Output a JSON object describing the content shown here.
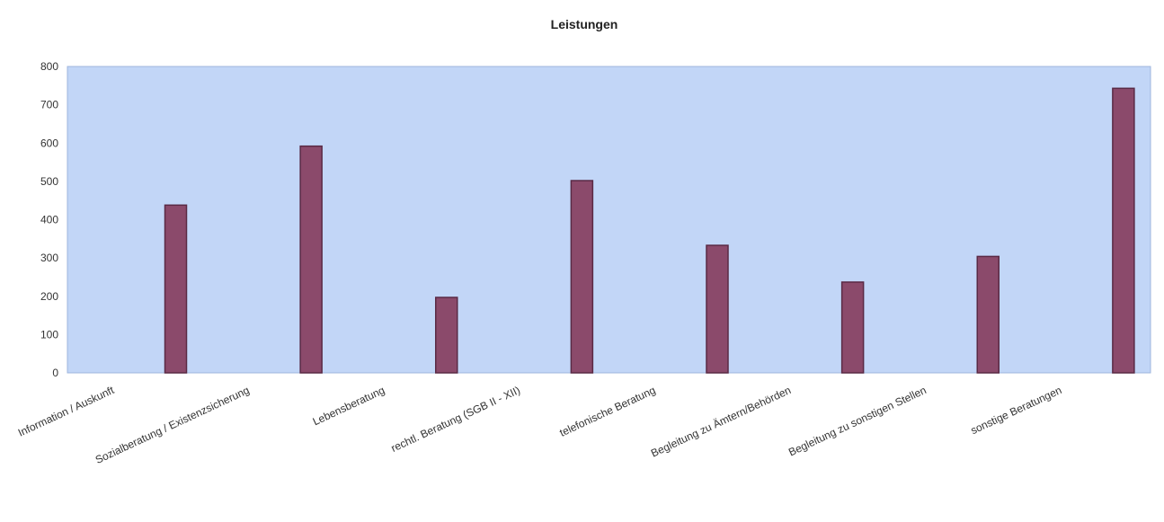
{
  "chart_data": {
    "type": "bar",
    "title": "Leistungen",
    "xlabel": "",
    "ylabel": "",
    "ylim": [
      0,
      800
    ],
    "yticks": [
      0,
      100,
      200,
      300,
      400,
      500,
      600,
      700,
      800
    ],
    "categories": [
      "Information / Auskunft",
      "Sozialberatung / Existenzsicherung",
      "Lebensberatung",
      "rechtl. Beratung (SGB II - XII)",
      "telefonische Beratung",
      "Begleitung zu Ämtern/Behörden",
      "Begleitung zu sonstigen Stellen",
      "sonstige Beratungen"
    ],
    "series": [
      {
        "values": [
          438,
          592,
          197,
          502,
          333,
          237,
          304,
          743
        ]
      }
    ],
    "grid": false,
    "legend": "none",
    "colors": {
      "bar": "#8b4a6b",
      "bar_stroke": "#5a2a45",
      "plot_bg": "#c2d6f7"
    }
  }
}
